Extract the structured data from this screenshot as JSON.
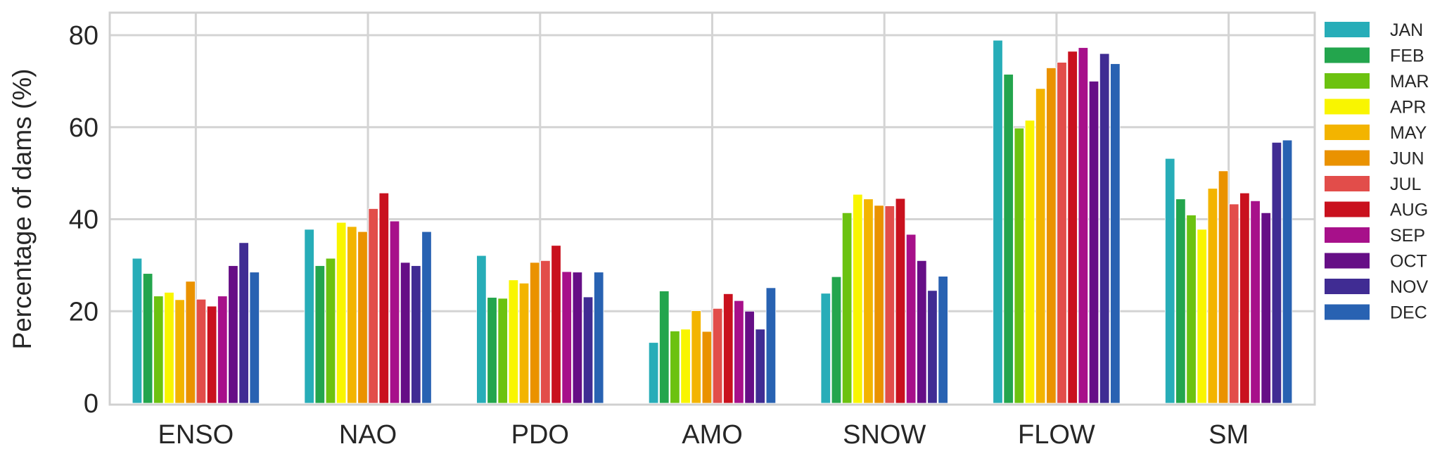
{
  "chart_data": {
    "type": "bar",
    "title": "",
    "xlabel": "",
    "ylabel": "Percentage of dams (%)",
    "ylim": [
      0,
      85
    ],
    "yticks": [
      0,
      20,
      40,
      60,
      80
    ],
    "grid": true,
    "legend_position": "right-outside",
    "categories": [
      "ENSO",
      "NAO",
      "PDO",
      "AMO",
      "SNOW",
      "FLOW",
      "SM"
    ],
    "series": [
      {
        "name": "JAN",
        "color": "#27adb8",
        "values": [
          31.5,
          37.8,
          32.1,
          13.2,
          23.9,
          78.9,
          53.2
        ]
      },
      {
        "name": "FEB",
        "color": "#23a54d",
        "values": [
          28.2,
          29.9,
          23.0,
          24.4,
          27.5,
          71.5,
          44.4
        ]
      },
      {
        "name": "MAR",
        "color": "#6cc210",
        "values": [
          23.3,
          31.5,
          22.8,
          15.7,
          41.4,
          59.8,
          40.9
        ]
      },
      {
        "name": "APR",
        "color": "#f9f500",
        "values": [
          24.1,
          39.3,
          26.8,
          16.1,
          45.4,
          61.5,
          37.8
        ]
      },
      {
        "name": "MAY",
        "color": "#f3b400",
        "values": [
          22.5,
          38.4,
          26.1,
          20.1,
          44.4,
          68.4,
          46.7
        ]
      },
      {
        "name": "JUN",
        "color": "#ea9200",
        "values": [
          26.5,
          37.3,
          30.6,
          15.6,
          43.0,
          72.9,
          50.5
        ]
      },
      {
        "name": "JUL",
        "color": "#e24d4a",
        "values": [
          22.6,
          42.3,
          31.0,
          20.6,
          42.9,
          74.1,
          43.3
        ]
      },
      {
        "name": "AUG",
        "color": "#c9111e",
        "values": [
          21.1,
          45.7,
          34.3,
          23.8,
          44.5,
          76.5,
          45.7
        ]
      },
      {
        "name": "SEP",
        "color": "#a7108a",
        "values": [
          23.3,
          39.6,
          28.6,
          22.3,
          36.7,
          77.3,
          44.0
        ]
      },
      {
        "name": "OCT",
        "color": "#660e86",
        "values": [
          29.9,
          30.6,
          28.5,
          20.0,
          31.0,
          70.0,
          41.4
        ]
      },
      {
        "name": "NOV",
        "color": "#402c93",
        "values": [
          34.9,
          29.9,
          23.1,
          16.1,
          24.5,
          76.0,
          56.7
        ]
      },
      {
        "name": "DEC",
        "color": "#2862b2",
        "values": [
          28.5,
          37.3,
          28.5,
          25.1,
          27.6,
          73.8,
          57.2
        ]
      }
    ]
  }
}
